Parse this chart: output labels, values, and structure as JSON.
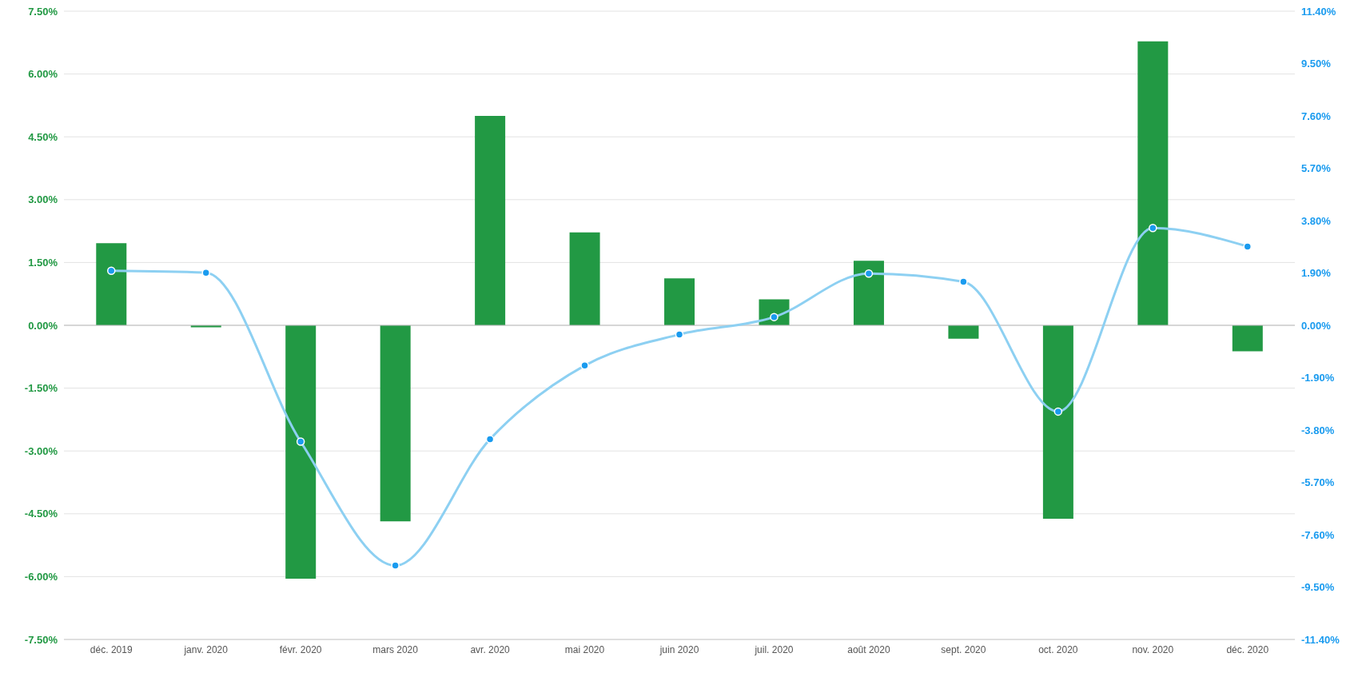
{
  "chart_data": {
    "type": "bar",
    "categories": [
      "déc. 2019",
      "janv. 2020",
      "févr. 2020",
      "mars 2020",
      "avr. 2020",
      "mai 2020",
      "juin 2020",
      "juil. 2020",
      "août 2020",
      "sept. 2020",
      "oct. 2020",
      "nov. 2020",
      "déc. 2020"
    ],
    "series": [
      {
        "color": "#229944",
        "values": [
          1.96,
          -0.05,
          -6.05,
          -4.68,
          5.0,
          2.22,
          1.12,
          0.62,
          1.54,
          -0.32,
          -4.62,
          6.78,
          -0.62
        ]
      },
      {
        "type": "line",
        "axis": "y2",
        "color": "#8dd0f2",
        "marker": "circle",
        "values": [
          1.98,
          1.91,
          -4.22,
          -8.72,
          -4.13,
          -1.46,
          -0.33,
          0.3,
          1.88,
          1.58,
          -3.13,
          3.53,
          2.86
        ]
      }
    ],
    "ylim": [
      -7.5,
      7.5
    ],
    "yticks": [
      {
        "value": -7.5,
        "label": "-7.50%"
      },
      {
        "value": -6,
        "label": "-6.00%"
      },
      {
        "value": -4.5,
        "label": "-4.50%"
      },
      {
        "value": -3,
        "label": "-3.00%"
      },
      {
        "value": -1.5,
        "label": "-1.50%"
      },
      {
        "value": 0,
        "label": "0.00%"
      },
      {
        "value": 1.5,
        "label": "1.50%"
      },
      {
        "value": 3,
        "label": "3.00%"
      },
      {
        "value": 4.5,
        "label": "4.50%"
      },
      {
        "value": 6,
        "label": "6.00%"
      },
      {
        "value": 7.5,
        "label": "7.50%"
      }
    ],
    "y2lim": [
      -11.4,
      11.4
    ],
    "y2ticks": [
      {
        "value": -11.4,
        "label": "-11.40%"
      },
      {
        "value": -9.5,
        "label": "-9.50%"
      },
      {
        "value": -7.6,
        "label": "-7.60%"
      },
      {
        "value": -5.7,
        "label": "-5.70%"
      },
      {
        "value": -3.8,
        "label": "-3.80%"
      },
      {
        "value": -1.9,
        "label": "-1.90%"
      },
      {
        "value": 0,
        "label": "0.00%"
      },
      {
        "value": 1.9,
        "label": "1.90%"
      },
      {
        "value": 3.8,
        "label": "3.80%"
      },
      {
        "value": 5.7,
        "label": "5.70%"
      },
      {
        "value": 7.6,
        "label": "7.60%"
      },
      {
        "value": 9.5,
        "label": "9.50%"
      },
      {
        "value": 11.4,
        "label": "11.40%"
      }
    ],
    "grid": "y"
  }
}
